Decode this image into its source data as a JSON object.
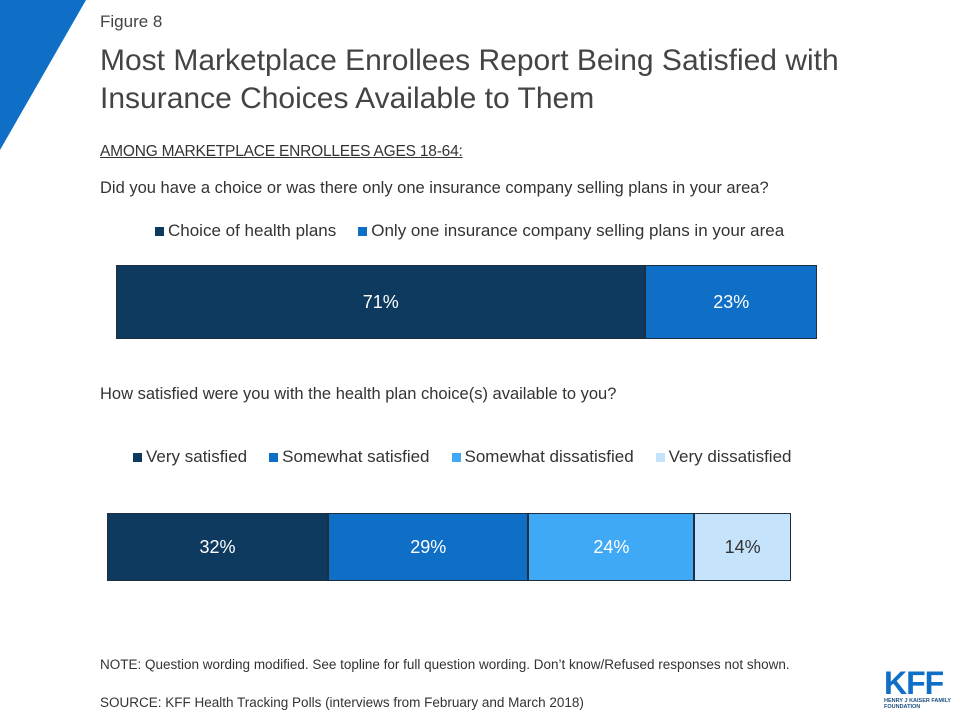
{
  "figure_label": "Figure 8",
  "title": "Most Marketplace Enrollees Report Being Satisfied with Insurance Choices Available to Them",
  "subhead": "AMONG MARKETPLACE ENROLLEES AGES 18-64:",
  "colors": {
    "corner_triangle": "#0f6fc6",
    "very_dark": "#0f3a5f",
    "medium": "#0f6fc6",
    "light": "#3fa9f5",
    "lightest": "#c5e3fb",
    "logo": "#0f6fc6"
  },
  "chart_data": [
    {
      "type": "bar",
      "orientation": "horizontal-stacked",
      "question": "Did you have a choice or was there only one insurance company selling plans in your area?",
      "series": [
        {
          "name": "Choice of health plans",
          "value": 71,
          "label": "71%",
          "color": "#0f3a5f",
          "text_color": "#ffffff"
        },
        {
          "name": "Only one insurance company selling plans in your area",
          "value": 23,
          "label": "23%",
          "color": "#0f6fc6",
          "text_color": "#ffffff"
        }
      ],
      "legend_placement": "top"
    },
    {
      "type": "bar",
      "orientation": "horizontal-stacked",
      "question": "How satisfied were you with the health plan choice(s) available to you?",
      "series": [
        {
          "name": "Very satisfied",
          "value": 32,
          "label": "32%",
          "color": "#0f3a5f",
          "text_color": "#ffffff"
        },
        {
          "name": "Somewhat satisfied",
          "value": 29,
          "label": "29%",
          "color": "#0f6fc6",
          "text_color": "#ffffff"
        },
        {
          "name": "Somewhat dissatisfied",
          "value": 24,
          "label": "24%",
          "color": "#3fa9f5",
          "text_color": "#ffffff"
        },
        {
          "name": "Very dissatisfied",
          "value": 14,
          "label": "14%",
          "color": "#c5e3fb",
          "text_color": "#333333"
        }
      ],
      "legend_placement": "top"
    }
  ],
  "note": "NOTE: Question wording modified. See topline for full question wording. Don’t know/Refused responses not shown.",
  "source": "SOURCE: KFF Health Tracking Polls (interviews from February and March 2018)",
  "logo": {
    "text": "KFF",
    "subtext": "HENRY J KAISER FAMILY FOUNDATION"
  }
}
